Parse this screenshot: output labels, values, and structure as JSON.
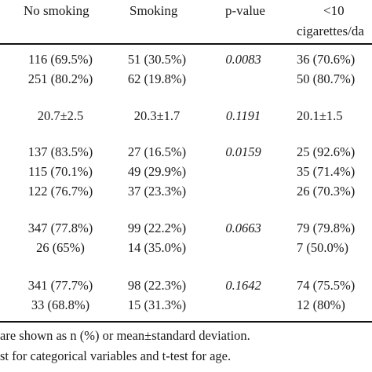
{
  "headers": {
    "no_smoking": "No smoking",
    "smoking": "Smoking",
    "p_value": "p-value",
    "lt10_line1": "<10",
    "lt10_line2": "cigarettes/da"
  },
  "rows": [
    {
      "c1": "116 (69.5%)",
      "c2": "51 (30.5%)",
      "c3": "0.0083",
      "c4": "36 (70.6%)"
    },
    {
      "c1": "251 (80.2%)",
      "c2": "62 (19.8%)",
      "c3": "",
      "c4": "50 (80.7%)"
    },
    {
      "c1": "20.7±2.5",
      "c2": "20.3±1.7",
      "c3": "0.1191",
      "c4": "20.1±1.5"
    },
    {
      "c1": "137 (83.5%)",
      "c2": "27 (16.5%)",
      "c3": "0.0159",
      "c4": "25 (92.6%)"
    },
    {
      "c1": "115 (70.1%)",
      "c2": "49 (29.9%)",
      "c3": "",
      "c4": "35 (71.4%)"
    },
    {
      "c1": "122 (76.7%)",
      "c2": "37 (23.3%)",
      "c3": "",
      "c4": "26 (70.3%)"
    },
    {
      "c1": "347 (77.8%)",
      "c2": "99 (22.2%)",
      "c3": "0.0663",
      "c4": "79 (79.8%)"
    },
    {
      "c1": "26 (65%)",
      "c2": "14 (35.0%)",
      "c3": "",
      "c4": "7 (50.0%)"
    },
    {
      "c1": "341 (77.7%)",
      "c2": "98 (22.3%)",
      "c3": "0.1642",
      "c4": "74 (75.5%)"
    },
    {
      "c1": "33 (68.8%)",
      "c2": "15 (31.3%)",
      "c3": "",
      "c4": "12 (80%)"
    }
  ],
  "footnotes": {
    "line1": "are shown as n (%) or mean±standard deviation.",
    "line2": "st for categorical variables and t-test for age."
  }
}
